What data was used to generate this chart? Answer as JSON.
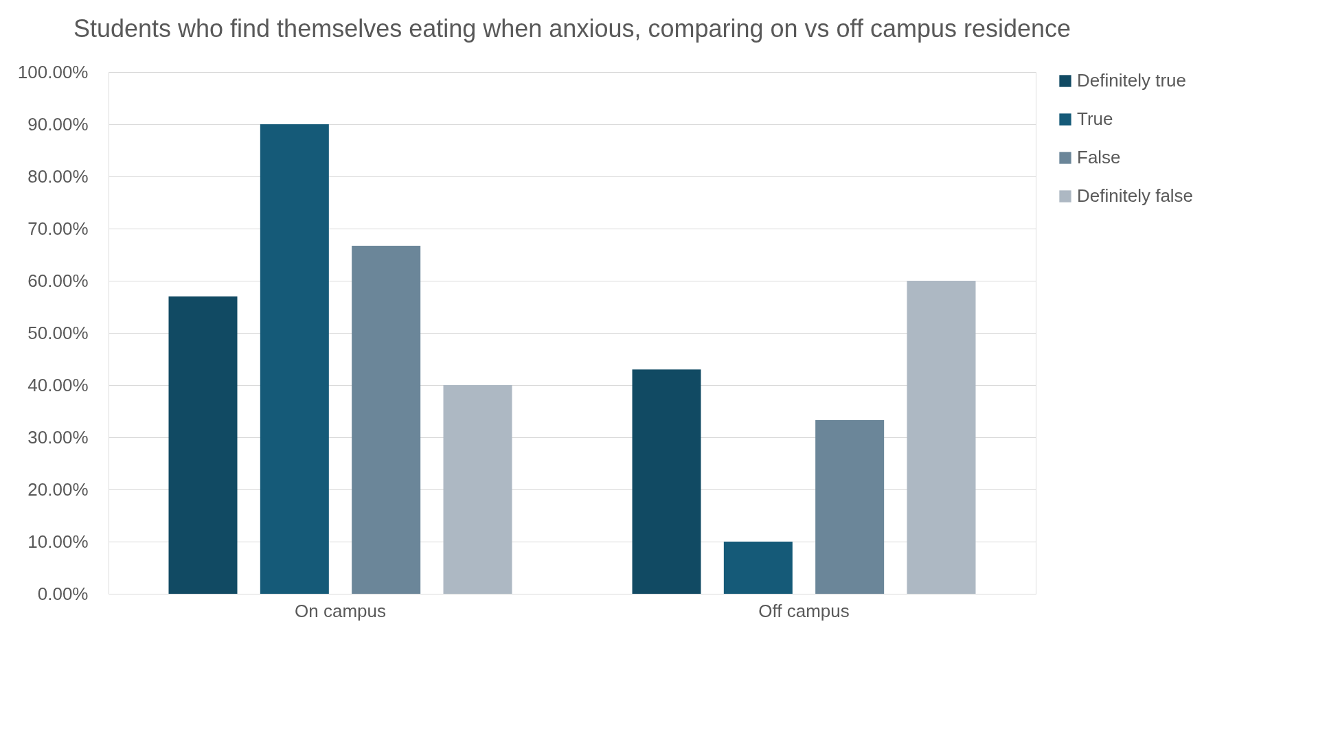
{
  "chart_data": {
    "type": "bar",
    "title": "Students who find themselves eating when anxious, comparing on vs off campus residence",
    "categories": [
      "On campus",
      "Off campus"
    ],
    "series": [
      {
        "name": "Definitely true",
        "color": "#114a63",
        "values": [
          57,
          43
        ]
      },
      {
        "name": "True",
        "color": "#155a78",
        "values": [
          90,
          10
        ]
      },
      {
        "name": "False",
        "color": "#6b8699",
        "values": [
          66.7,
          33.3
        ]
      },
      {
        "name": "Definitely false",
        "color": "#adb8c3",
        "values": [
          40,
          60
        ]
      }
    ],
    "ylim": [
      0,
      100
    ],
    "yticks": [
      {
        "value": 0,
        "label": "0.00%"
      },
      {
        "value": 10,
        "label": "10.00%"
      },
      {
        "value": 20,
        "label": "20.00%"
      },
      {
        "value": 30,
        "label": "30.00%"
      },
      {
        "value": 40,
        "label": "40.00%"
      },
      {
        "value": 50,
        "label": "50.00%"
      },
      {
        "value": 60,
        "label": "60.00%"
      },
      {
        "value": 70,
        "label": "70.00%"
      },
      {
        "value": 80,
        "label": "80.00%"
      },
      {
        "value": 90,
        "label": "90.00%"
      },
      {
        "value": 100,
        "label": "100.00%"
      }
    ],
    "grid": "y",
    "legend": "right"
  }
}
